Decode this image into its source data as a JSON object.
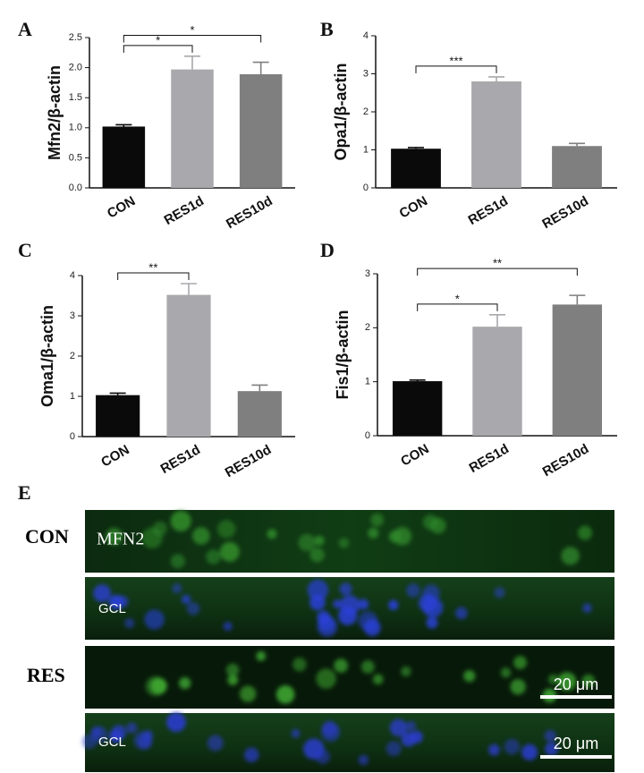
{
  "chart_data": [
    {
      "type": "bar",
      "panel_label": "A",
      "ylabel": "Mfn2/β-actin",
      "categories": [
        "CON",
        "RES1d",
        "RES10d"
      ],
      "values": [
        1.02,
        1.97,
        1.89
      ],
      "errors": [
        0.03,
        0.22,
        0.2
      ],
      "colors": [
        "#0a0a0a",
        "#a9a9ad",
        "#7f7f7f"
      ],
      "ylim": [
        0,
        2.5
      ],
      "yticks": [
        {
          "value": 0,
          "label": "0.0"
        },
        {
          "value": 0.5,
          "label": "0.5"
        },
        {
          "value": 1,
          "label": "1.0"
        },
        {
          "value": 1.5,
          "label": "1.5"
        },
        {
          "value": 2,
          "label": "2.0"
        },
        {
          "value": 2.5,
          "label": "2.5"
        }
      ],
      "annotations": [
        {
          "text": "*",
          "from": "CON",
          "to": "RES1d"
        },
        {
          "text": "*",
          "from": "CON",
          "to": "RES10d"
        }
      ]
    },
    {
      "type": "bar",
      "panel_label": "B",
      "ylabel": "Opa1/β-actin",
      "categories": [
        "CON",
        "RES1d",
        "RES10d"
      ],
      "values": [
        1.03,
        2.8,
        1.1
      ],
      "errors": [
        0.03,
        0.12,
        0.07
      ],
      "colors": [
        "#0a0a0a",
        "#a9a9ad",
        "#7f7f7f"
      ],
      "ylim": [
        0,
        4
      ],
      "yticks": [
        0,
        1,
        2,
        3,
        4
      ],
      "annotations": [
        {
          "text": "***",
          "from": "CON",
          "to": "RES1d"
        }
      ]
    },
    {
      "type": "bar",
      "panel_label": "C",
      "ylabel": "Oma1/β-actin",
      "categories": [
        "CON",
        "RES1d",
        "RES10d"
      ],
      "values": [
        1.03,
        3.52,
        1.13
      ],
      "errors": [
        0.05,
        0.28,
        0.15
      ],
      "colors": [
        "#0a0a0a",
        "#a9a9ad",
        "#7f7f7f"
      ],
      "ylim": [
        0,
        4
      ],
      "yticks": [
        0,
        1,
        2,
        3,
        4
      ],
      "annotations": [
        {
          "text": "**",
          "from": "CON",
          "to": "RES1d"
        }
      ]
    },
    {
      "type": "bar",
      "panel_label": "D",
      "ylabel": "Fis1/β-actin",
      "categories": [
        "CON",
        "RES1d",
        "RES10d"
      ],
      "values": [
        1.01,
        2.02,
        2.43
      ],
      "errors": [
        0.02,
        0.22,
        0.17
      ],
      "colors": [
        "#0a0a0a",
        "#a9a9ad",
        "#7f7f7f"
      ],
      "ylim": [
        0,
        3
      ],
      "yticks": [
        0,
        1,
        2,
        3
      ],
      "annotations": [
        {
          "text": "*",
          "from": "CON",
          "to": "RES1d"
        },
        {
          "text": "**",
          "from": "CON",
          "to": "RES10d"
        }
      ]
    }
  ],
  "panel_e": {
    "label": "E",
    "row_labels": [
      "CON",
      "RES"
    ],
    "stain": "MFN2",
    "layer": [
      "GCL",
      "GCL"
    ],
    "scale_bars": [
      "20 μm",
      "20 μm"
    ]
  }
}
